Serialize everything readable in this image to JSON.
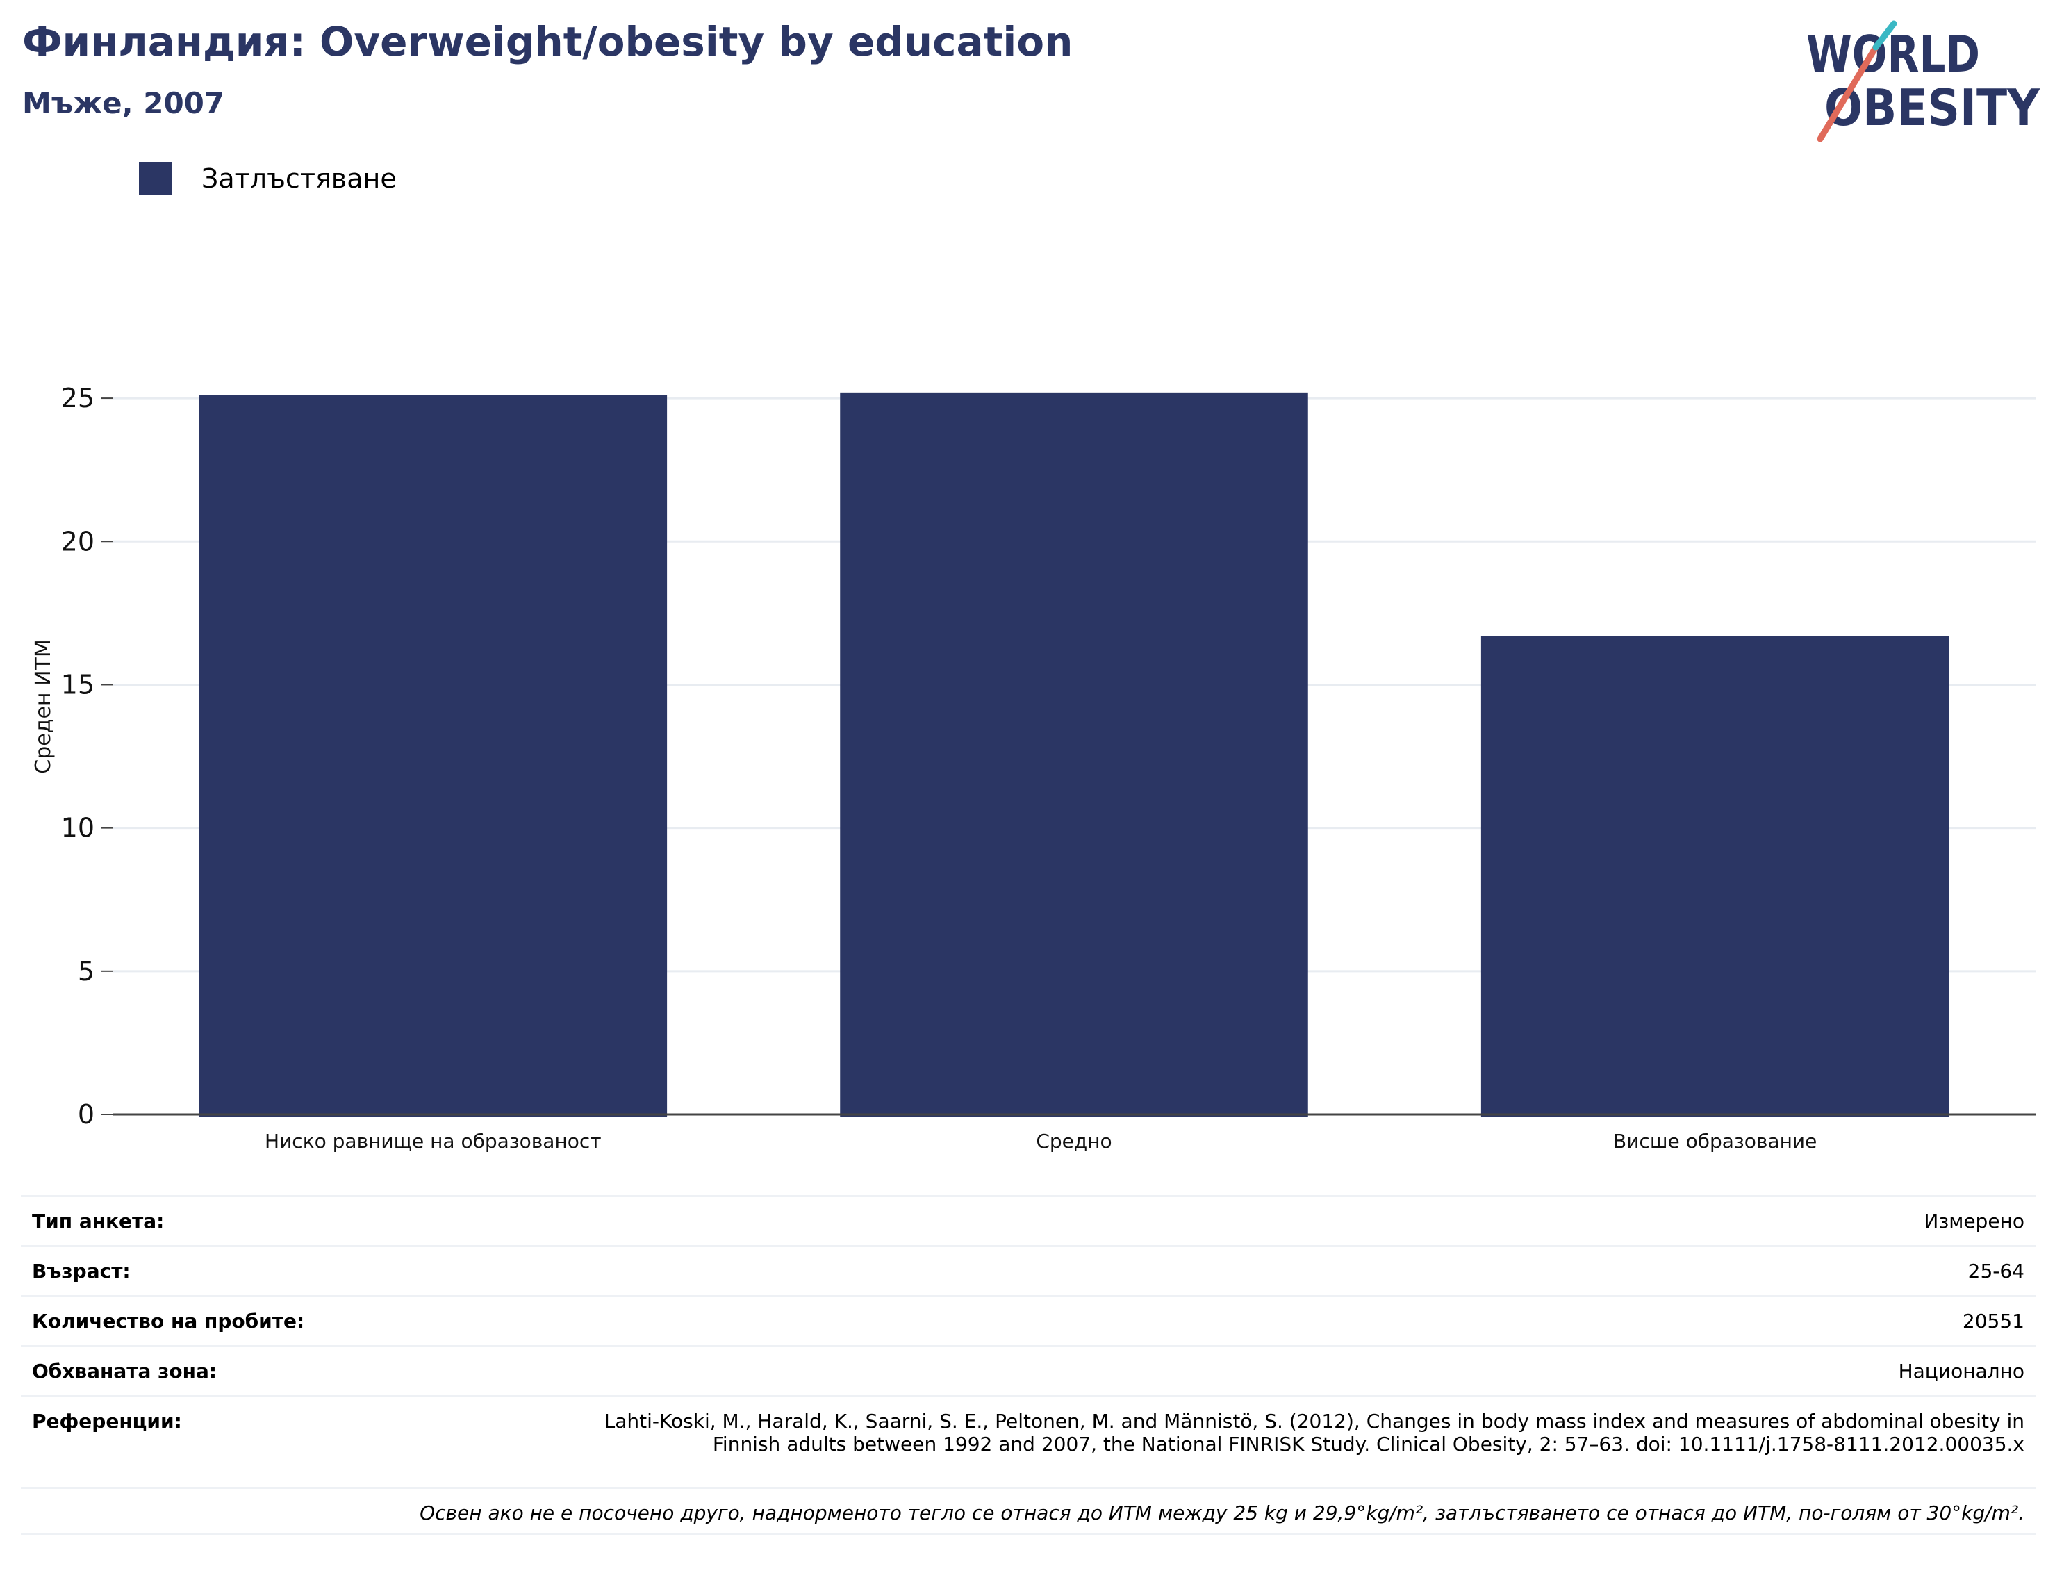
{
  "header": {
    "title": "Финландия: Overweight/obesity by education",
    "subtitle": "Мъже, 2007"
  },
  "logo": {
    "line1": "WORLD",
    "line2": "OBESITY",
    "colors": [
      "#2b3664",
      "#e06a5a",
      "#3ab8c4"
    ]
  },
  "legend": {
    "items": [
      {
        "label": "Затлъстяване",
        "color": "#2b3664"
      }
    ]
  },
  "chart_data": {
    "type": "bar",
    "categories": [
      "Ниско равнище на образованост",
      "Средно",
      "Висше образование"
    ],
    "series": [
      {
        "name": "Затлъстяване",
        "values": [
          25.1,
          25.2,
          16.7
        ],
        "color": "#2b3664"
      }
    ],
    "ylabel": "Среден ИТМ",
    "xlabel": "",
    "ylim": [
      0,
      27.5
    ],
    "yticks": [
      0,
      5,
      10,
      15,
      20,
      25
    ],
    "grid": true
  },
  "info": {
    "rows": [
      {
        "label": "Тип анкета:",
        "value": "Измерено"
      },
      {
        "label": "Възраст:",
        "value": "25-64"
      },
      {
        "label": "Количество на пробите:",
        "value": "20551"
      },
      {
        "label": "Обхваната зона:",
        "value": "Национално"
      }
    ],
    "references": {
      "label": "Референции:",
      "value": "Lahti-Koski, M., Harald, K., Saarni, S. E., Peltonen, M. and Männistö, S. (2012), Changes in body mass index and measures of abdominal obesity in Finnish adults between 1992 and 2007, the National FINRISK Study. Clinical Obesity, 2: 57–63. doi: 10.1111/j.1758-8111.2012.00035.x"
    },
    "note": "Освен ако не е посочено друго, наднорменото тегло се отнася до ИТМ между 25 kg и 29,9°kg/m², затлъстяването се отнася до ИТМ, по-голям от 30°kg/m²."
  }
}
